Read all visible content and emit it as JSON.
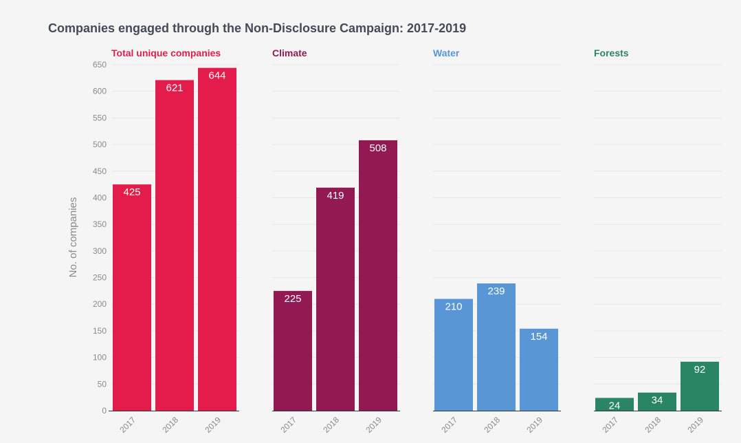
{
  "chart_data": {
    "type": "bar",
    "title": "Companies engaged through the Non-Disclosure Campaign: 2017-2019",
    "ylabel": "No. of companies",
    "ylim": [
      0,
      650
    ],
    "yticks": [
      "0",
      "50",
      "100",
      "150",
      "200",
      "250",
      "300",
      "350",
      "400",
      "450",
      "500",
      "550",
      "600",
      "650"
    ],
    "categories": [
      "2017",
      "2018",
      "2019"
    ],
    "grid": true,
    "panels": [
      {
        "name": "Total unique companies",
        "color": "#e31c4b",
        "values": [
          425,
          621,
          644
        ],
        "labels": [
          "425",
          "621",
          "644"
        ]
      },
      {
        "name": "Climate",
        "color": "#931952",
        "values": [
          225,
          419,
          508
        ],
        "labels": [
          "225",
          "419",
          "508"
        ]
      },
      {
        "name": "Water",
        "color": "#5896d6",
        "values": [
          210,
          239,
          154
        ],
        "labels": [
          "210",
          "239",
          "154"
        ]
      },
      {
        "name": "Forests",
        "color": "#2a8565",
        "values": [
          24,
          34,
          92
        ],
        "labels": [
          "24",
          "34",
          "92"
        ]
      }
    ]
  }
}
